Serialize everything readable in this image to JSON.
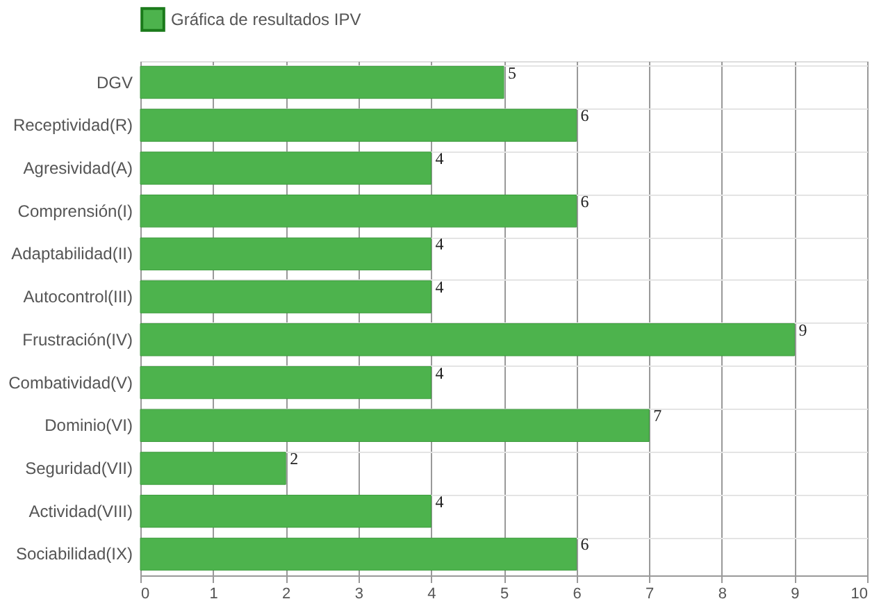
{
  "chart_data": {
    "type": "bar",
    "orientation": "horizontal",
    "categories": [
      "DGV",
      "Receptividad(R)",
      "Agresividad(A)",
      "Comprensión(I)",
      "Adaptabilidad(II)",
      "Autocontrol(III)",
      "Frustración(IV)",
      "Combatividad(V)",
      "Dominio(VI)",
      "Seguridad(VII)",
      "Actividad(VIII)",
      "Sociabilidad(IX)"
    ],
    "series": [
      {
        "name": "Gráfica de resultados IPV",
        "color": "#4db34d",
        "values": [
          5,
          6,
          4,
          6,
          4,
          4,
          9,
          4,
          7,
          2,
          4,
          6
        ]
      }
    ],
    "xlim": [
      0,
      10
    ],
    "xticks": [
      0,
      1,
      2,
      3,
      4,
      5,
      6,
      7,
      8,
      9,
      10
    ],
    "grid": true,
    "legend": "top",
    "data_labels": true
  }
}
